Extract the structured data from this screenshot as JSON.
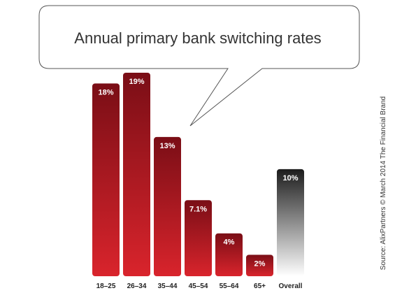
{
  "chart_data": {
    "type": "bar",
    "title": "Annual primary bank switching rates",
    "categories": [
      "18–25",
      "26–34",
      "35–44",
      "45–54",
      "55–64",
      "65+",
      "Overall"
    ],
    "values": [
      18,
      19,
      13,
      7.1,
      4,
      2,
      10
    ],
    "value_labels": [
      "18%",
      "19%",
      "13%",
      "7.1%",
      "4%",
      "2%",
      "10%"
    ],
    "ylim": [
      0,
      20
    ],
    "grid": false,
    "legend": "none"
  },
  "source": "Source: AlixPartners © March 2014 The Financial Brand",
  "colors": {
    "bar_top": "#7a0e16",
    "bar_bottom": "#d9242c",
    "overall_top": "#1c1c1c",
    "overall_bottom": "#ffffff",
    "title_text": "#333333"
  }
}
